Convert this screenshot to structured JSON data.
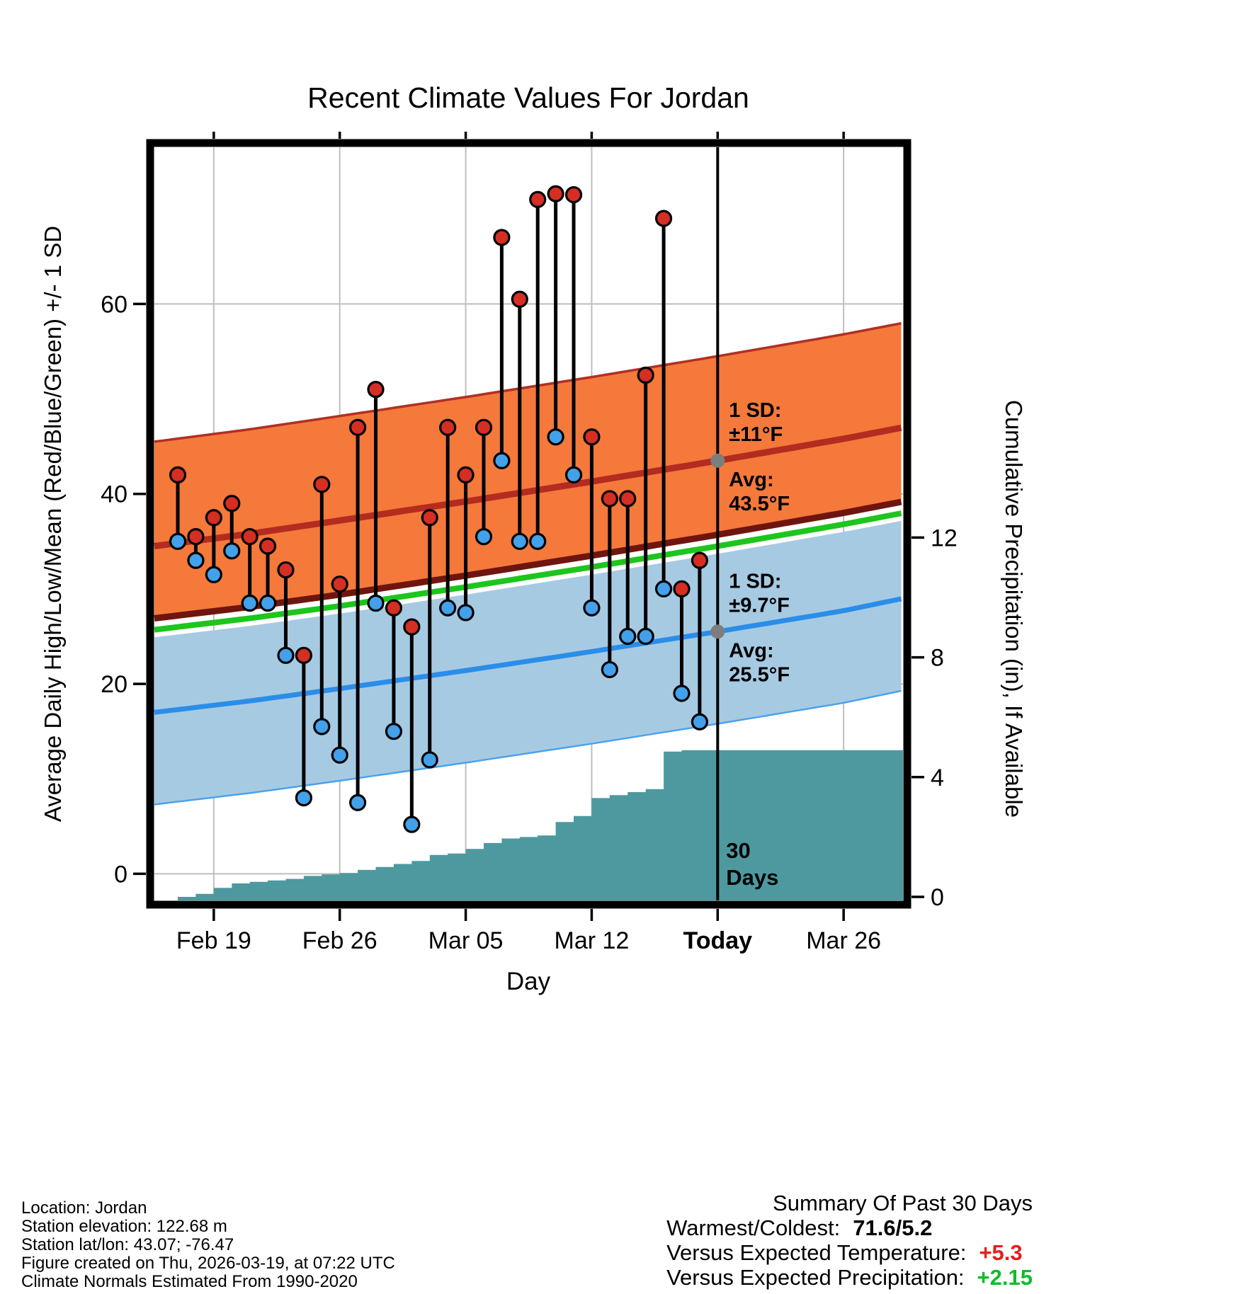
{
  "title": "Recent Climate Values For Jordan",
  "axes": {
    "xlabel": "Day",
    "ylabel_left": "Average Daily High/Low/Mean (Red/Blue/Green) +/- 1 SD",
    "ylabel_right": "Cumulative Precipitation (in), If Available"
  },
  "annotations": {
    "high": {
      "lines_above": [
        "1 SD:",
        "±11°F"
      ],
      "lines_below": [
        "Avg:",
        "43.5°F"
      ]
    },
    "low": {
      "lines_above": [
        "1 SD:",
        "±9.7°F"
      ],
      "lines_below": [
        "Avg:",
        "25.5°F"
      ]
    },
    "today_marker": [
      "30",
      "Days"
    ]
  },
  "footer_left": {
    "lines": [
      "Location: Jordan",
      "Station elevation: 122.68 m",
      "Station lat/lon: 43.07; -76.47",
      "Figure created on Thu, 2026-03-19, at 07:22 UTC",
      "Climate Normals Estimated From 1990-2020"
    ]
  },
  "summary": {
    "title": "Summary Of Past 30 Days",
    "rows": [
      {
        "label": "Warmest/Coldest:",
        "value": "71.6/5.2",
        "color": "#000000"
      },
      {
        "label": "Versus Expected Temperature:",
        "value": "+5.3",
        "color": "#e3201b"
      },
      {
        "label": "Versus Expected Precipitation:",
        "value": "+2.15",
        "color": "#0fbc2a"
      }
    ]
  },
  "colors": {
    "high_band": "#f4793b",
    "high_band_top_edge": "#b03024",
    "high_band_bottom_edge": "#6f150f",
    "high_avg_line": "#b42b20",
    "mean_line": "#1dc51d",
    "low_band": "#a7cae3",
    "low_band_edge": "#4aa2ec",
    "low_avg_line": "#2a8ee8",
    "precip_area": "#4e99a0",
    "high_dot": "#d52f23",
    "low_dot": "#42a1ea",
    "gray_dot": "#7d7d7d",
    "annotation_text": "#8a8a8a",
    "grid": "#bebebe"
  },
  "chart_data": {
    "type": "combo",
    "description": "Daily observed high/low temperatures (stems with red/blue dots), climate-normal bands (high ±1SD orange, low ±1SD light blue, mean green line), and cumulative precipitation (teal step area) versus day.",
    "x_range": [
      -0.3,
      41.3
    ],
    "today_day": 31,
    "x_ticks": [
      {
        "day": 3,
        "label": "Feb 19",
        "bold": false
      },
      {
        "day": 10,
        "label": "Feb 26",
        "bold": false
      },
      {
        "day": 17,
        "label": "Mar 05",
        "bold": false
      },
      {
        "day": 24,
        "label": "Mar 12",
        "bold": false
      },
      {
        "day": 31,
        "label": "Today",
        "bold": true
      },
      {
        "day": 38,
        "label": "Mar 26",
        "bold": false
      }
    ],
    "temp_axis": {
      "ticks": [
        0,
        20,
        40,
        60
      ],
      "range": [
        -2.8,
        76.5
      ],
      "unit": "°F"
    },
    "precip_axis": {
      "ticks": [
        0,
        4,
        8,
        12
      ],
      "unit": "in"
    },
    "daily": [
      {
        "date": "Feb 17",
        "day": 1,
        "high": 42,
        "low": 35
      },
      {
        "date": "Feb 18",
        "day": 2,
        "high": 35.5,
        "low": 33
      },
      {
        "date": "Feb 19",
        "day": 3,
        "high": 37.5,
        "low": 31.5
      },
      {
        "date": "Feb 20",
        "day": 4,
        "high": 39,
        "low": 34
      },
      {
        "date": "Feb 21",
        "day": 5,
        "high": 35.5,
        "low": 28.5
      },
      {
        "date": "Feb 22",
        "day": 6,
        "high": 34.5,
        "low": 28.5
      },
      {
        "date": "Feb 23",
        "day": 7,
        "high": 32,
        "low": 23
      },
      {
        "date": "Feb 24",
        "day": 8,
        "high": 23,
        "low": 8
      },
      {
        "date": "Feb 25",
        "day": 9,
        "high": 41,
        "low": 15.5
      },
      {
        "date": "Feb 26",
        "day": 10,
        "high": 30.5,
        "low": 12.5
      },
      {
        "date": "Feb 27",
        "day": 11,
        "high": 47,
        "low": 7.5
      },
      {
        "date": "Feb 28",
        "day": 12,
        "high": 51,
        "low": 28.5
      },
      {
        "date": "Mar 01",
        "day": 13,
        "high": 28,
        "low": 15
      },
      {
        "date": "Mar 02",
        "day": 14,
        "high": 26,
        "low": 5.2
      },
      {
        "date": "Mar 03",
        "day": 15,
        "high": 37.5,
        "low": 12
      },
      {
        "date": "Mar 04",
        "day": 16,
        "high": 47,
        "low": 28
      },
      {
        "date": "Mar 05",
        "day": 17,
        "high": 42,
        "low": 27.5
      },
      {
        "date": "Mar 06",
        "day": 18,
        "high": 47,
        "low": 35.5
      },
      {
        "date": "Mar 07",
        "day": 19,
        "high": 67,
        "low": 43.5
      },
      {
        "date": "Mar 08",
        "day": 20,
        "high": 60.5,
        "low": 35
      },
      {
        "date": "Mar 09",
        "day": 21,
        "high": 71,
        "low": 35
      },
      {
        "date": "Mar 10",
        "day": 22,
        "high": 71.6,
        "low": 46
      },
      {
        "date": "Mar 11",
        "day": 23,
        "high": 71.5,
        "low": 42
      },
      {
        "date": "Mar 12",
        "day": 24,
        "high": 46,
        "low": 28
      },
      {
        "date": "Mar 13",
        "day": 25,
        "high": 39.5,
        "low": 21.5
      },
      {
        "date": "Mar 14",
        "day": 26,
        "high": 39.5,
        "low": 25
      },
      {
        "date": "Mar 15",
        "day": 27,
        "high": 52.5,
        "low": 25
      },
      {
        "date": "Mar 16",
        "day": 28,
        "high": 69,
        "low": 30
      },
      {
        "date": "Mar 17",
        "day": 29,
        "high": 30,
        "low": 19
      },
      {
        "date": "Mar 18",
        "day": 30,
        "high": 33,
        "low": 16
      }
    ],
    "normals": {
      "control_days": [
        -0.3,
        5,
        10,
        17,
        24,
        31,
        38,
        41.3
      ],
      "avg_high": [
        34.5,
        35.8,
        37.2,
        39.2,
        41.3,
        43.5,
        45.8,
        47.0
      ],
      "avg_low": [
        17.0,
        18.2,
        19.5,
        21.4,
        23.4,
        25.5,
        27.7,
        29.0
      ],
      "mean": [
        25.7,
        26.9,
        28.2,
        30.2,
        32.3,
        34.5,
        36.8,
        38.0
      ],
      "high_sd": 11.0,
      "low_sd": 9.7
    },
    "precip_cumulative": [
      {
        "day": 1,
        "value": 0
      },
      {
        "day": 2,
        "value": 0.1
      },
      {
        "day": 3,
        "value": 0.3
      },
      {
        "day": 4,
        "value": 0.45
      },
      {
        "day": 5,
        "value": 0.5
      },
      {
        "day": 6,
        "value": 0.55
      },
      {
        "day": 7,
        "value": 0.6
      },
      {
        "day": 8,
        "value": 0.7
      },
      {
        "day": 9,
        "value": 0.75
      },
      {
        "day": 10,
        "value": 0.8
      },
      {
        "day": 11,
        "value": 0.9
      },
      {
        "day": 12,
        "value": 1.0
      },
      {
        "day": 13,
        "value": 1.1
      },
      {
        "day": 14,
        "value": 1.2
      },
      {
        "day": 15,
        "value": 1.4
      },
      {
        "day": 16,
        "value": 1.45
      },
      {
        "day": 17,
        "value": 1.6
      },
      {
        "day": 18,
        "value": 1.8
      },
      {
        "day": 19,
        "value": 1.95
      },
      {
        "day": 20,
        "value": 2.0
      },
      {
        "day": 21,
        "value": 2.05
      },
      {
        "day": 22,
        "value": 2.5
      },
      {
        "day": 23,
        "value": 2.7
      },
      {
        "day": 24,
        "value": 3.3
      },
      {
        "day": 25,
        "value": 3.4
      },
      {
        "day": 26,
        "value": 3.5
      },
      {
        "day": 27,
        "value": 3.6
      },
      {
        "day": 28,
        "value": 4.85
      },
      {
        "day": 29,
        "value": 4.9
      },
      {
        "day": 30,
        "value": 4.9
      }
    ],
    "precip_extends_to_right_edge": true
  }
}
